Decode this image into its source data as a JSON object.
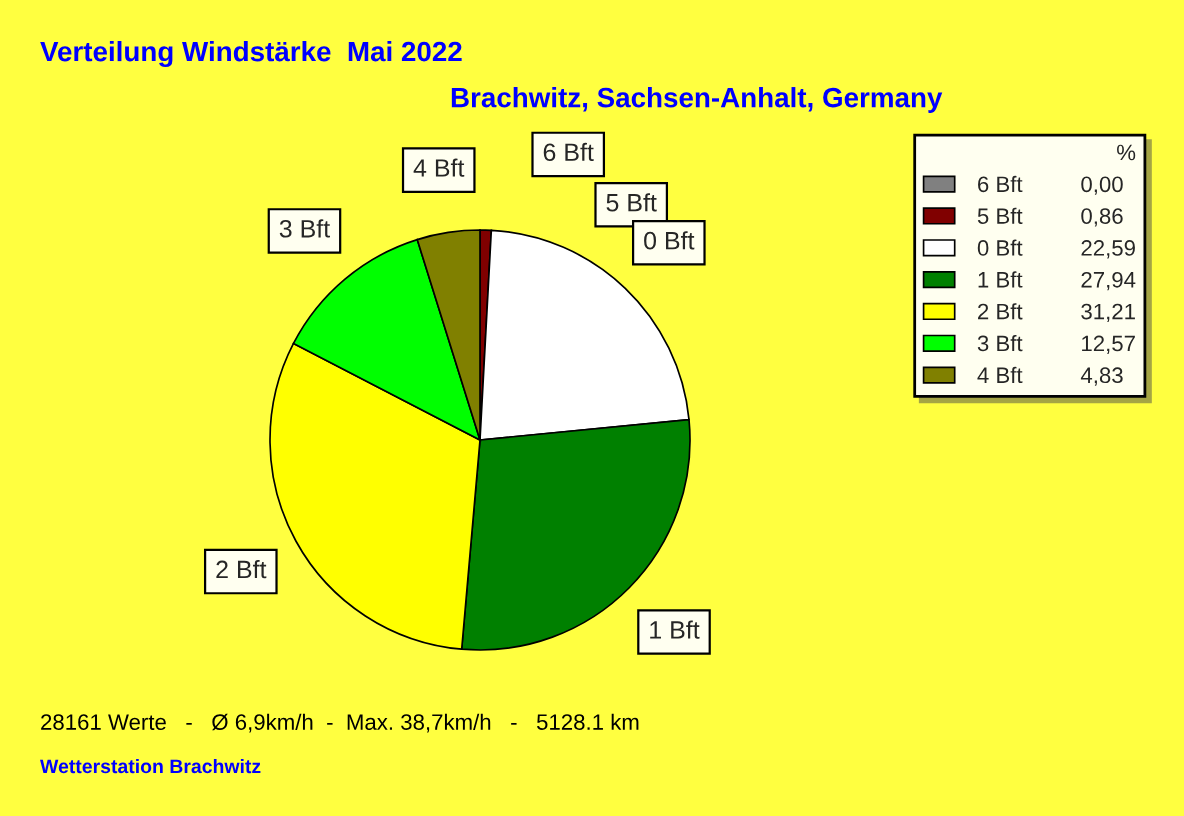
{
  "chart_data": {
    "type": "pie",
    "title": "Verteilung Windstärke  Mai 2022",
    "subtitle": "Brachwitz, Sachsen-Anhalt, Germany",
    "categories": [
      "6 Bft",
      "5 Bft",
      "0 Bft",
      "1 Bft",
      "2 Bft",
      "3 Bft",
      "4 Bft"
    ],
    "values": [
      0.0,
      0.86,
      22.59,
      27.94,
      31.21,
      12.57,
      4.83
    ],
    "value_labels": [
      "0,00",
      "0,86",
      "22,59",
      "27,94",
      "31,21",
      "12,57",
      "4,83"
    ],
    "colors": [
      "#808080",
      "#800000",
      "#ffffff",
      "#008000",
      "#ffff00",
      "#00ff00",
      "#808000"
    ],
    "legend_title": "%",
    "legend": "right",
    "annotations": [
      "28161 Werte   -   Ø 6,9km/h  -  Max. 38,7km/h   -   5128.1 km",
      "Wetterstation Brachwitz"
    ]
  }
}
